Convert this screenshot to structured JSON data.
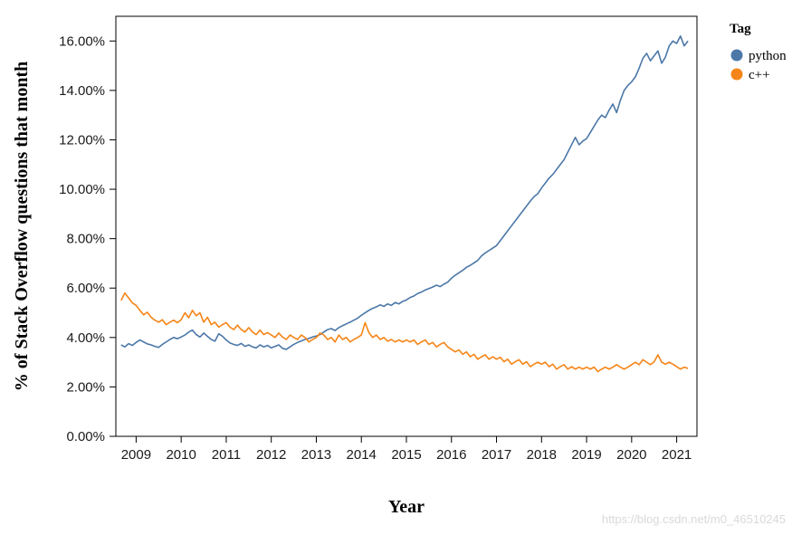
{
  "watermark": "https://blog.csdn.net/m0_46510245",
  "chart_data": {
    "type": "line",
    "title": "",
    "xlabel": "Year",
    "ylabel": "% of Stack Overflow questions that month",
    "legend_title": "Tag",
    "legend_position": "top-right",
    "grid": false,
    "xlim": [
      2008.55,
      2021.45
    ],
    "ylim": [
      0,
      17
    ],
    "x_ticks": [
      2009,
      2010,
      2011,
      2012,
      2013,
      2014,
      2015,
      2016,
      2017,
      2018,
      2019,
      2020,
      2021
    ],
    "y_tick_values": [
      0,
      2,
      4,
      6,
      8,
      10,
      12,
      14,
      16
    ],
    "y_tick_labels": [
      "0.00%",
      "2.00%",
      "4.00%",
      "6.00%",
      "8.00%",
      "10.00%",
      "12.00%",
      "14.00%",
      "16.00%"
    ],
    "x_start_year": 2008,
    "x_start_month": 9,
    "x_step": "month",
    "series": [
      {
        "name": "python",
        "color": "#4c78a8",
        "values": [
          3.7,
          3.62,
          3.75,
          3.68,
          3.8,
          3.9,
          3.82,
          3.74,
          3.7,
          3.64,
          3.6,
          3.72,
          3.82,
          3.92,
          4.0,
          3.95,
          4.02,
          4.1,
          4.22,
          4.3,
          4.12,
          4.02,
          4.18,
          4.05,
          3.92,
          3.85,
          4.15,
          4.05,
          3.9,
          3.78,
          3.72,
          3.68,
          3.76,
          3.64,
          3.7,
          3.62,
          3.58,
          3.7,
          3.62,
          3.68,
          3.58,
          3.64,
          3.7,
          3.56,
          3.52,
          3.62,
          3.72,
          3.8,
          3.86,
          3.92,
          3.96,
          4.02,
          4.06,
          4.12,
          4.22,
          4.32,
          4.36,
          4.28,
          4.4,
          4.48,
          4.55,
          4.62,
          4.7,
          4.78,
          4.9,
          5.0,
          5.1,
          5.18,
          5.24,
          5.32,
          5.26,
          5.36,
          5.3,
          5.42,
          5.36,
          5.46,
          5.52,
          5.62,
          5.68,
          5.78,
          5.84,
          5.92,
          5.98,
          6.04,
          6.12,
          6.06,
          6.16,
          6.24,
          6.4,
          6.52,
          6.62,
          6.72,
          6.84,
          6.92,
          7.02,
          7.12,
          7.3,
          7.42,
          7.52,
          7.62,
          7.72,
          7.92,
          8.12,
          8.32,
          8.52,
          8.72,
          8.92,
          9.12,
          9.32,
          9.52,
          9.7,
          9.82,
          10.05,
          10.25,
          10.45,
          10.6,
          10.8,
          11.0,
          11.2,
          11.5,
          11.8,
          12.1,
          11.8,
          11.95,
          12.05,
          12.3,
          12.55,
          12.8,
          13.0,
          12.9,
          13.2,
          13.45,
          13.1,
          13.6,
          14.0,
          14.2,
          14.35,
          14.55,
          14.9,
          15.3,
          15.5,
          15.2,
          15.4,
          15.6,
          15.1,
          15.35,
          15.8,
          16.0,
          15.9,
          16.2,
          15.8,
          16.0
        ]
      },
      {
        "name": "c++",
        "color": "#f58518",
        "values": [
          5.5,
          5.8,
          5.6,
          5.4,
          5.3,
          5.1,
          4.92,
          5.02,
          4.82,
          4.7,
          4.62,
          4.72,
          4.52,
          4.62,
          4.7,
          4.6,
          4.72,
          5.0,
          4.8,
          5.1,
          4.88,
          5.0,
          4.62,
          4.82,
          4.52,
          4.62,
          4.42,
          4.52,
          4.6,
          4.42,
          4.32,
          4.5,
          4.32,
          4.22,
          4.4,
          4.22,
          4.12,
          4.3,
          4.12,
          4.2,
          4.1,
          4.0,
          4.18,
          4.02,
          3.92,
          4.1,
          4.0,
          3.92,
          4.1,
          4.0,
          3.82,
          3.92,
          4.0,
          4.18,
          4.1,
          3.92,
          4.0,
          3.82,
          4.1,
          3.92,
          4.0,
          3.82,
          3.92,
          4.0,
          4.1,
          4.6,
          4.2,
          4.0,
          4.1,
          3.92,
          4.0,
          3.85,
          3.92,
          3.82,
          3.9,
          3.82,
          3.9,
          3.82,
          3.9,
          3.72,
          3.82,
          3.9,
          3.72,
          3.8,
          3.62,
          3.72,
          3.8,
          3.62,
          3.52,
          3.42,
          3.5,
          3.32,
          3.42,
          3.22,
          3.32,
          3.12,
          3.22,
          3.3,
          3.12,
          3.22,
          3.12,
          3.2,
          3.02,
          3.12,
          2.92,
          3.02,
          3.1,
          2.92,
          3.02,
          2.82,
          2.92,
          3.0,
          2.92,
          3.0,
          2.82,
          2.92,
          2.72,
          2.82,
          2.9,
          2.72,
          2.82,
          2.72,
          2.8,
          2.72,
          2.8,
          2.72,
          2.8,
          2.62,
          2.72,
          2.8,
          2.72,
          2.8,
          2.9,
          2.8,
          2.72,
          2.8,
          2.9,
          3.0,
          2.9,
          3.1,
          3.0,
          2.9,
          3.02,
          3.3,
          3.0,
          2.92,
          3.0,
          2.92,
          2.82,
          2.72,
          2.8,
          2.75
        ]
      }
    ]
  }
}
